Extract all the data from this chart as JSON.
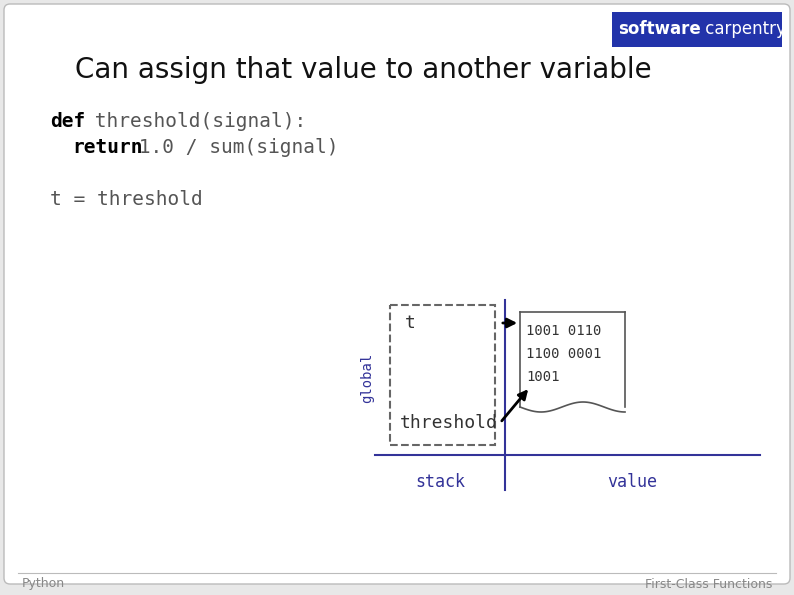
{
  "title": "Can assign that value to another variable",
  "title_fontsize": 20,
  "code_fontsize": 14,
  "bg_color": "#e8e8e8",
  "slide_bg": "#e8e8e8",
  "slide_fill": "#ffffff",
  "diagram_color": "#333399",
  "stack_label": "stack",
  "value_label": "value",
  "global_label": "global",
  "footer_left": "Python",
  "footer_right": "First-Class Functions",
  "logo_bg": "#2233aa",
  "logo_text1": "software",
  "logo_text2": " carpentry"
}
